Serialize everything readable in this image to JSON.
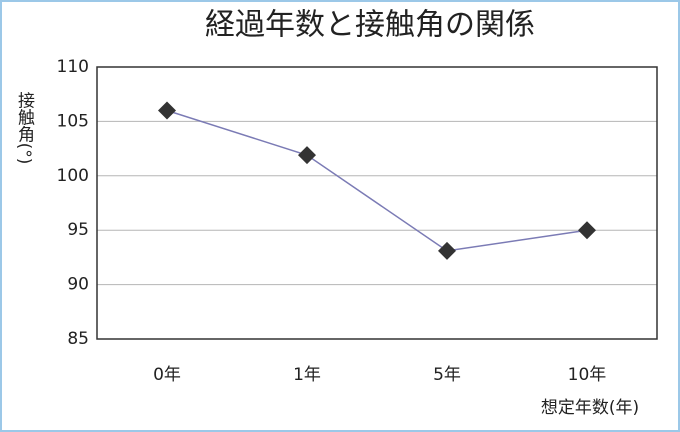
{
  "chart_data": {
    "type": "line",
    "title": "経過年数と接触角の関係",
    "y_label": "接触角(°)",
    "x_label": "想定年数(年)",
    "categories": [
      "0年",
      "1年",
      "5年",
      "10年"
    ],
    "series": [
      {
        "name": "接触角",
        "color": "#7b7bb5",
        "values": [
          106,
          101.9,
          93.1,
          95
        ]
      }
    ],
    "ylim": [
      85,
      110
    ],
    "yticks": [
      85,
      90,
      95,
      100,
      105,
      110
    ],
    "grid": true
  }
}
